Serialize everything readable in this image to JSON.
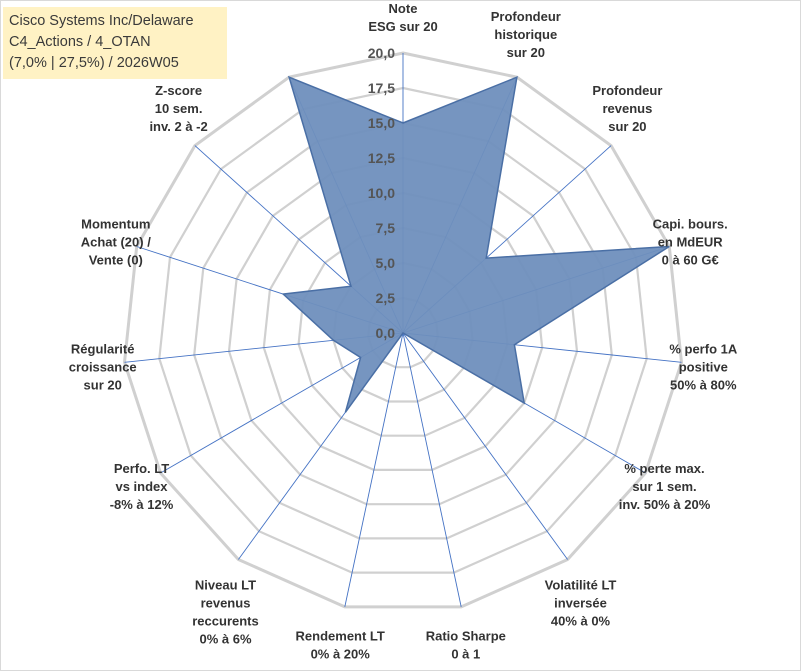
{
  "header": {
    "line1": "Cisco Systems Inc/Delaware",
    "line2": "C4_Actions / 4_OTAN",
    "line3": "(7,0% | 27,5%) / 2026W05"
  },
  "chart_data": {
    "type": "radar",
    "scale": {
      "min": 0,
      "max": 20,
      "step": 2.5,
      "grid_rings": 8
    },
    "ticks": [
      "0,0",
      "2,5",
      "5,0",
      "7,5",
      "10,0",
      "12,5",
      "15,0",
      "17,5",
      "20,0"
    ],
    "axes": [
      {
        "label": [
          "Note",
          "ESG sur 20"
        ],
        "value": 15.0
      },
      {
        "label": [
          "Profondeur",
          "historique",
          "sur 20"
        ],
        "value": 20.0
      },
      {
        "label": [
          "Profondeur",
          "revenus",
          "sur 20"
        ],
        "value": 8.0
      },
      {
        "label": [
          "Capi. bours.",
          "en MdEUR",
          "0 à 60 G€"
        ],
        "value": 20.0
      },
      {
        "label": [
          "% perfo 1A",
          "positive",
          "50% à 80%"
        ],
        "value": 8.0
      },
      {
        "label": [
          "% perte max.",
          "sur 1 sem.",
          "inv. 50% à 20%"
        ],
        "value": 10.0
      },
      {
        "label": [
          "Volatilité LT",
          "inversée",
          "40% à 0%"
        ],
        "value": 0.0
      },
      {
        "label": [
          "Ratio Sharpe",
          "0 à 1"
        ],
        "value": 0.0
      },
      {
        "label": [
          "Rendement LT",
          "0% à 20%"
        ],
        "value": 0.0
      },
      {
        "label": [
          "Niveau LT",
          "revenus",
          "reccurents",
          "0% à 6%"
        ],
        "value": 7.0
      },
      {
        "label": [
          "Perfo. LT",
          "vs index",
          "-8% à 12%"
        ],
        "value": 3.5
      },
      {
        "label": [
          "Régularité",
          "croissance",
          "sur 20"
        ],
        "value": 5.0
      },
      {
        "label": [
          "Momentum",
          "Achat (20) /",
          "Vente (0)"
        ],
        "value": 9.0
      },
      {
        "label": [
          "Z-score",
          "10 sem.",
          "inv. 2 à -2"
        ],
        "value": 5.0
      },
      {
        "label": [
          "",
          "",
          ""
        ],
        "value": 20.0
      }
    ],
    "colors": {
      "fill": "#6f8fbd",
      "stroke": "#4a6fa5",
      "grid": "#d0d0d0",
      "spoke": "#4472c4"
    }
  }
}
